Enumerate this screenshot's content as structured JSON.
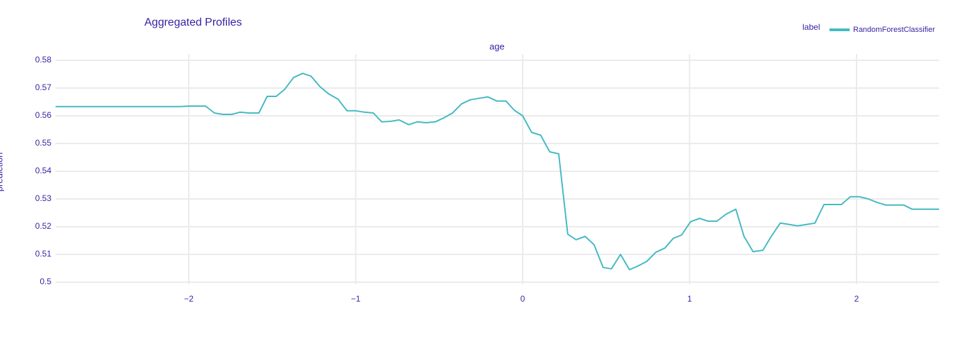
{
  "chart_data": {
    "type": "line",
    "title": "Aggregated Profiles",
    "facet_title": "age",
    "y_label": "prediction",
    "legend_title": "label",
    "legend_position": "top-right",
    "grid": true,
    "xlim": [
      -2.798,
      2.495
    ],
    "ylim": [
      0.49925,
      0.58225
    ],
    "xticks": [
      {
        "value": -2,
        "label": "−2"
      },
      {
        "value": -1,
        "label": "−1"
      },
      0,
      1,
      2
    ],
    "yticks": [
      0.5,
      0.51,
      0.52,
      0.53,
      0.54,
      0.55,
      0.56,
      0.57,
      0.58
    ],
    "x": [
      -2.798,
      -2.05,
      -2.0,
      -1.9,
      -1.846,
      -1.796,
      -1.742,
      -1.693,
      -1.642,
      -1.58,
      -1.53,
      -1.476,
      -1.426,
      -1.372,
      -1.318,
      -1.268,
      -1.214,
      -1.16,
      -1.106,
      -1.052,
      -1.0,
      -0.948,
      -0.894,
      -0.844,
      -0.79,
      -0.74,
      -0.682,
      -0.632,
      -0.578,
      -0.524,
      -0.47,
      -0.42,
      -0.366,
      -0.312,
      -0.262,
      -0.208,
      -0.154,
      -0.1,
      -0.05,
      0,
      0.054,
      0.108,
      0.162,
      0.216,
      0.27,
      0.32,
      0.374,
      0.428,
      0.482,
      0.532,
      0.586,
      0.64,
      0.69,
      0.744,
      0.798,
      0.852,
      0.902,
      0.952,
      1.006,
      1.06,
      1.11,
      1.164,
      1.218,
      1.277,
      1.326,
      1.38,
      1.439,
      1.489,
      1.543,
      1.597,
      1.647,
      1.701,
      1.751,
      1.805,
      1.854,
      1.909,
      1.963,
      2.017,
      2.071,
      2.121,
      2.175,
      2.229,
      2.283,
      2.333,
      2.387,
      2.441,
      2.495
    ],
    "series": [
      {
        "name": "RandomForestClassifier",
        "color": "#46bac2",
        "values": [
          0.5633,
          0.5633,
          0.5635,
          0.5635,
          0.561,
          0.5605,
          0.5605,
          0.5613,
          0.561,
          0.561,
          0.567,
          0.567,
          0.5695,
          0.5738,
          0.5753,
          0.5743,
          0.5705,
          0.5678,
          0.566,
          0.5618,
          0.5618,
          0.5613,
          0.561,
          0.5578,
          0.558,
          0.5585,
          0.5568,
          0.5578,
          0.5575,
          0.5578,
          0.5593,
          0.561,
          0.5643,
          0.5658,
          0.5663,
          0.5668,
          0.5653,
          0.5653,
          0.562,
          0.56,
          0.554,
          0.553,
          0.547,
          0.5463,
          0.5173,
          0.5153,
          0.5165,
          0.5135,
          0.5053,
          0.5048,
          0.51,
          0.5045,
          0.5058,
          0.5075,
          0.5108,
          0.5123,
          0.5158,
          0.517,
          0.5218,
          0.523,
          0.522,
          0.522,
          0.5245,
          0.5263,
          0.5165,
          0.511,
          0.5115,
          0.5165,
          0.5213,
          0.5208,
          0.5203,
          0.5208,
          0.5213,
          0.528,
          0.528,
          0.528,
          0.5308,
          0.5308,
          0.53,
          0.5288,
          0.5278,
          0.5278,
          0.5278,
          0.5263,
          0.5263,
          0.5263,
          0.5263
        ]
      }
    ]
  }
}
